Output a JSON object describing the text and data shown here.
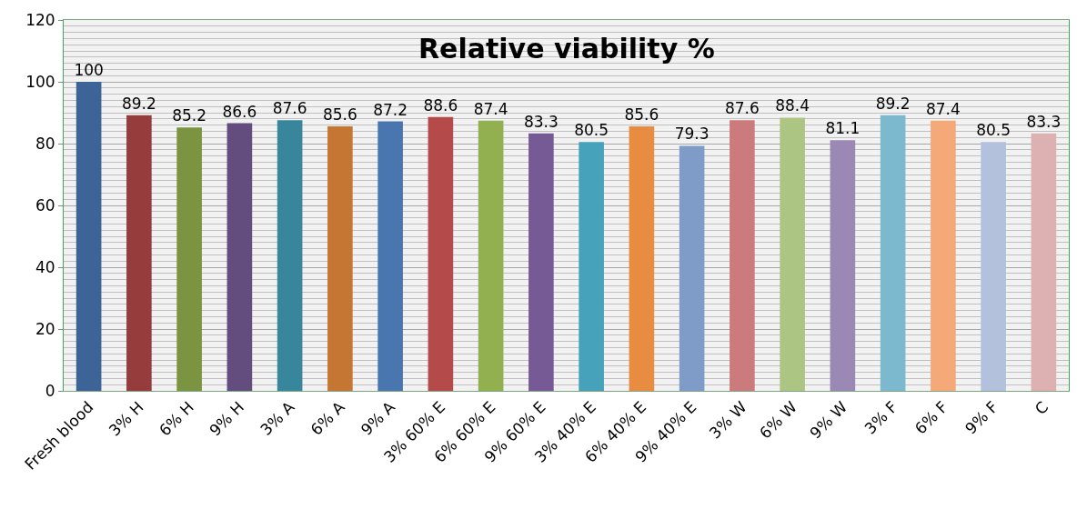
{
  "chart_data": {
    "type": "bar",
    "title": "Relative viability %",
    "categories": [
      "Fresh blood",
      "3% H",
      "6% H",
      "9% H",
      "3% A",
      "6% A",
      "9% A",
      "3% 60% E",
      "6% 60% E",
      "9% 60% E",
      "3% 40% E",
      "6% 40% E",
      "9% 40% E",
      "3% W",
      "6% W",
      "9% W",
      "3% F",
      "6% F",
      "9% F",
      "C"
    ],
    "values": [
      100,
      89.2,
      85.2,
      86.6,
      87.6,
      85.6,
      87.2,
      88.6,
      87.4,
      83.3,
      80.5,
      85.6,
      79.3,
      87.6,
      88.4,
      81.1,
      89.2,
      87.4,
      80.5,
      83.3
    ],
    "colors": [
      "#3c6496",
      "#963c3c",
      "#7a9441",
      "#634c7e",
      "#38869c",
      "#c57633",
      "#4a76b0",
      "#b54a4a",
      "#93b051",
      "#765a96",
      "#46a1bb",
      "#e78c40",
      "#7f9bc7",
      "#cb7b7b",
      "#adc583",
      "#9b88b4",
      "#7cb9cf",
      "#f5a878",
      "#b3c1dd",
      "#ddb1b1"
    ],
    "ylim": [
      0,
      120
    ],
    "yticks": [
      0,
      20,
      40,
      60,
      80,
      100,
      120
    ],
    "grid": "y",
    "data_labels": true
  }
}
